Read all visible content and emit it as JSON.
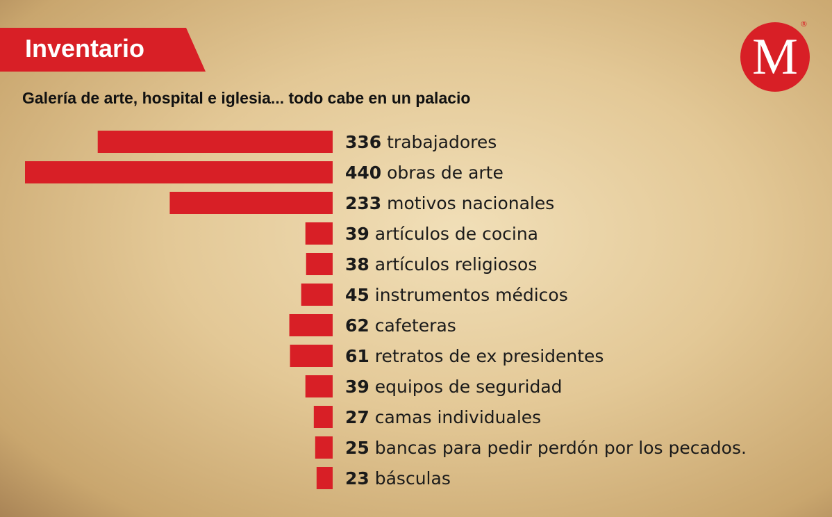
{
  "header": {
    "tag": "Inventario",
    "subtitle": "Galería de arte, hospital e iglesia... todo cabe en un palacio",
    "logo": "M",
    "logo_mark": "®"
  },
  "colors": {
    "bar": "#d81f26"
  },
  "chart_data": {
    "type": "bar",
    "orientation": "horizontal",
    "title": "Galería de arte, hospital e iglesia... todo cabe en un palacio",
    "categories": [
      "trabajadores",
      "obras de arte",
      "motivos nacionales",
      "artículos de cocina",
      "artículos religiosos",
      "instrumentos médicos",
      "cafeteras",
      "retratos de ex presidentes",
      "equipos de seguridad",
      "camas individuales",
      "bancas para pedir perdón por los pecados.",
      "básculas"
    ],
    "values": [
      336,
      440,
      233,
      39,
      38,
      45,
      62,
      61,
      39,
      27,
      25,
      23
    ],
    "xlabel": "",
    "ylabel": "",
    "xlim": [
      0,
      440
    ],
    "grid": false
  }
}
